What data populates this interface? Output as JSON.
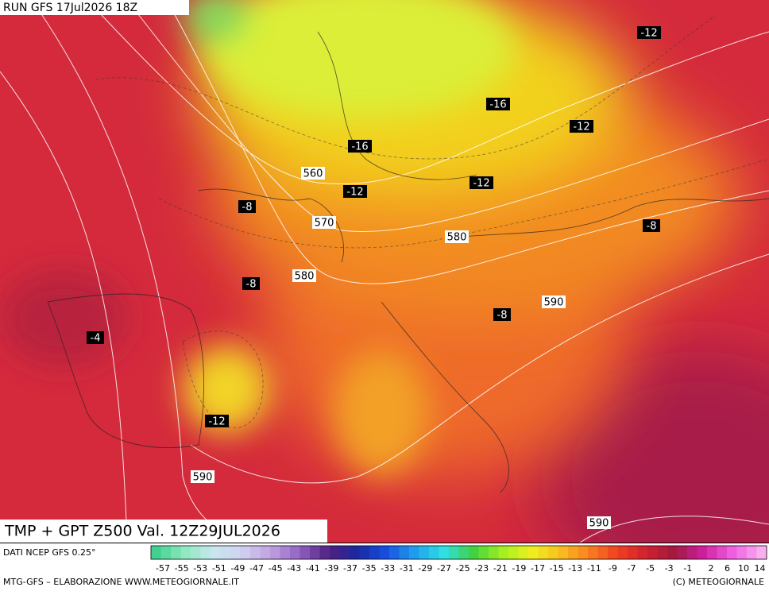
{
  "header": {
    "run": "RUN GFS 17Jul2026 18Z"
  },
  "map": {
    "title": "TMP + GPT Z500 Val. 12Z29JUL2026",
    "labels": [
      "-12",
      "-16",
      "-12",
      "-16",
      "560",
      "-12",
      "-12",
      "-8",
      "570",
      "580",
      "-8",
      "580",
      "-8",
      "590",
      "-8",
      "-4",
      "-12",
      "590",
      "590"
    ]
  },
  "colorbar": {
    "source": "DATI NCEP GFS 0.25°",
    "labels": [
      -57,
      -55,
      -53,
      -51,
      -49,
      -47,
      -45,
      -43,
      -41,
      -39,
      -37,
      -35,
      -33,
      -31,
      -29,
      -27,
      -25,
      -23,
      -21,
      -19,
      -17,
      -15,
      -13,
      -11,
      -9,
      -7,
      -5,
      -3,
      -1,
      2,
      6,
      10,
      14
    ]
  },
  "footer": {
    "credit": "MTG-GFS – ELABORAZIONE WWW.METEOGIORNALE.IT",
    "copyright": "(C) METEOGIORNALE"
  }
}
